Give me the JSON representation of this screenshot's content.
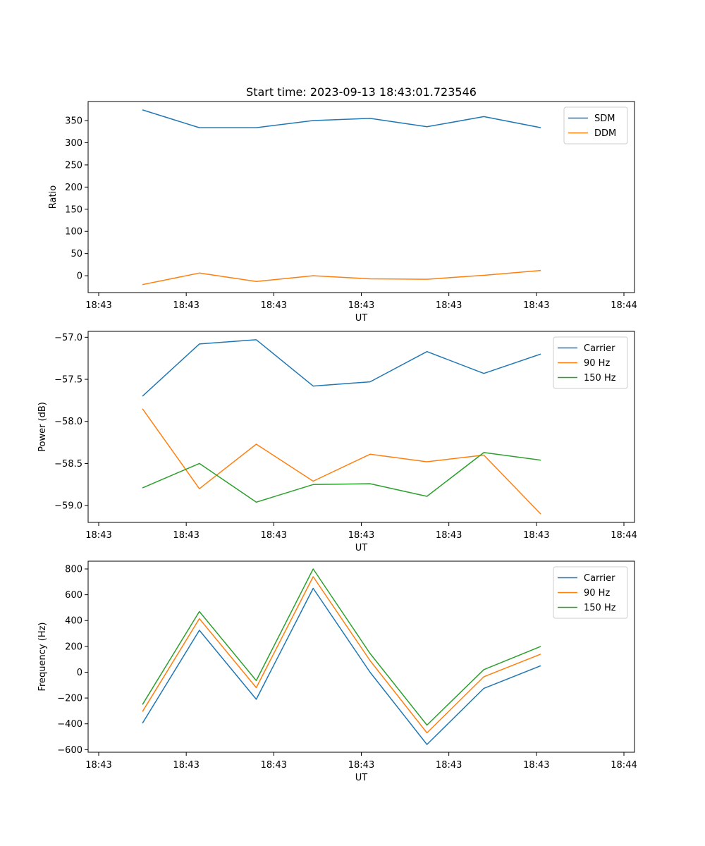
{
  "chart_data": [
    {
      "type": "line",
      "title": "Start time: 2023-09-13 18:43:01.723546",
      "xlabel": "UT",
      "ylabel": "Ratio",
      "xlim": [
        0,
        6
      ],
      "x": [
        0.5,
        1.15,
        1.8,
        2.45,
        3.1,
        3.75,
        4.4,
        5.05
      ],
      "xtick_values": [
        0,
        1,
        2,
        3,
        4,
        5,
        6
      ],
      "xtick_labels": [
        "18:43",
        "18:43",
        "18:43",
        "18:43",
        "18:43",
        "18:43",
        "18:44"
      ],
      "ylim": [
        -38,
        393
      ],
      "yticks": [
        0,
        50,
        100,
        150,
        200,
        250,
        300,
        350
      ],
      "legend_loc": "upper right",
      "series": [
        {
          "name": "SDM",
          "color": "#1f77b4",
          "values": [
            374,
            334,
            334,
            350,
            355,
            336,
            359,
            334
          ]
        },
        {
          "name": "DDM",
          "color": "#ff7f0e",
          "values": [
            -20,
            6,
            -13,
            0,
            -7,
            -8,
            1,
            12
          ]
        }
      ]
    },
    {
      "type": "line",
      "title": "",
      "xlabel": "UT",
      "ylabel": "Power (dB)",
      "xlim": [
        0,
        6
      ],
      "x": [
        0.5,
        1.15,
        1.8,
        2.45,
        3.1,
        3.75,
        4.4,
        5.05
      ],
      "xtick_values": [
        0,
        1,
        2,
        3,
        4,
        5,
        6
      ],
      "xtick_labels": [
        "18:43",
        "18:43",
        "18:43",
        "18:43",
        "18:43",
        "18:43",
        "18:44"
      ],
      "ylim": [
        -59.2,
        -56.93
      ],
      "yticks": [
        -59.0,
        -58.5,
        -58.0,
        -57.5,
        -57.0
      ],
      "ytick_labels": [
        "−59.0",
        "−58.5",
        "−58.0",
        "−57.5",
        "−57.0"
      ],
      "legend_loc": "upper right",
      "series": [
        {
          "name": "Carrier",
          "color": "#1f77b4",
          "values": [
            -57.7,
            -57.08,
            -57.03,
            -57.58,
            -57.53,
            -57.17,
            -57.43,
            -57.2
          ]
        },
        {
          "name": "90 Hz",
          "color": "#ff7f0e",
          "values": [
            -57.85,
            -58.8,
            -58.27,
            -58.71,
            -58.39,
            -58.48,
            -58.4,
            -59.1
          ]
        },
        {
          "name": "150 Hz",
          "color": "#2ca02c",
          "values": [
            -58.79,
            -58.5,
            -58.96,
            -58.75,
            -58.74,
            -58.89,
            -58.37,
            -58.46
          ]
        }
      ]
    },
    {
      "type": "line",
      "title": "",
      "xlabel": "UT",
      "ylabel": "Frequency (Hz)",
      "xlim": [
        0,
        6
      ],
      "x": [
        0.5,
        1.15,
        1.8,
        2.45,
        3.1,
        3.75,
        4.4,
        5.05
      ],
      "xtick_values": [
        0,
        1,
        2,
        3,
        4,
        5,
        6
      ],
      "xtick_labels": [
        "18:43",
        "18:43",
        "18:43",
        "18:43",
        "18:43",
        "18:43",
        "18:44"
      ],
      "ylim": [
        -620,
        860
      ],
      "yticks": [
        -600,
        -400,
        -200,
        0,
        200,
        400,
        600,
        800
      ],
      "ytick_labels": [
        "−600",
        "−400",
        "−200",
        "0",
        "200",
        "400",
        "600",
        "800"
      ],
      "legend_loc": "upper right",
      "series": [
        {
          "name": "Carrier",
          "color": "#1f77b4",
          "values": [
            -395,
            325,
            -210,
            650,
            0,
            -560,
            -125,
            50
          ]
        },
        {
          "name": "90 Hz",
          "color": "#ff7f0e",
          "values": [
            -305,
            415,
            -120,
            740,
            90,
            -470,
            -35,
            140
          ]
        },
        {
          "name": "150 Hz",
          "color": "#2ca02c",
          "values": [
            -250,
            470,
            -65,
            800,
            145,
            -410,
            20,
            200
          ]
        }
      ]
    }
  ]
}
